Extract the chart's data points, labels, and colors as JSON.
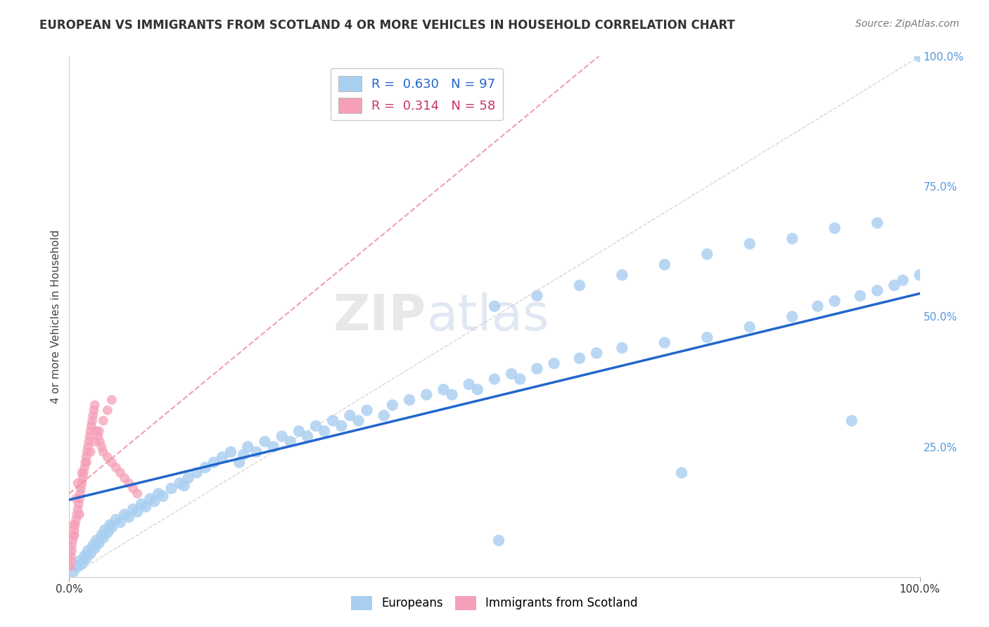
{
  "title": "EUROPEAN VS IMMIGRANTS FROM SCOTLAND 4 OR MORE VEHICLES IN HOUSEHOLD CORRELATION CHART",
  "source": "Source: ZipAtlas.com",
  "ylabel": "4 or more Vehicles in Household",
  "watermark_line1": "ZIP",
  "watermark_line2": "atlas",
  "blue_R": 0.63,
  "blue_N": 97,
  "pink_R": 0.314,
  "pink_N": 58,
  "blue_color": "#a8cef0",
  "pink_color": "#f5a0b8",
  "blue_line_color": "#2266cc",
  "pink_line_color": "#ee8899",
  "identity_line_color": "#cccccc",
  "background_color": "#ffffff",
  "legend_text_blue": "R =  0.630   N = 97",
  "legend_text_pink": "R =  0.314   N = 58",
  "legend_color_blue": "#2266cc",
  "legend_color_pink": "#cc3366",
  "blue_scatter_x": [
    0.5,
    1.0,
    1.2,
    1.5,
    1.8,
    2.0,
    2.2,
    2.5,
    2.8,
    3.0,
    3.2,
    3.5,
    3.8,
    4.0,
    4.2,
    4.5,
    4.8,
    5.0,
    5.5,
    6.0,
    6.5,
    7.0,
    7.5,
    8.0,
    8.5,
    9.0,
    9.5,
    10.0,
    10.5,
    11.0,
    12.0,
    13.0,
    13.5,
    14.0,
    15.0,
    16.0,
    17.0,
    18.0,
    19.0,
    20.0,
    20.5,
    21.0,
    22.0,
    23.0,
    24.0,
    25.0,
    26.0,
    27.0,
    28.0,
    29.0,
    30.0,
    31.0,
    32.0,
    33.0,
    34.0,
    35.0,
    37.0,
    38.0,
    40.0,
    42.0,
    44.0,
    45.0,
    47.0,
    48.0,
    50.0,
    50.5,
    52.0,
    53.0,
    55.0,
    57.0,
    60.0,
    62.0,
    65.0,
    70.0,
    72.0,
    75.0,
    80.0,
    85.0,
    88.0,
    90.0,
    92.0,
    93.0,
    95.0,
    97.0,
    98.0,
    100.0,
    50.0,
    55.0,
    60.0,
    65.0,
    70.0,
    75.0,
    80.0,
    85.0,
    90.0,
    95.0,
    100.0
  ],
  "blue_scatter_y": [
    1.0,
    2.0,
    3.0,
    2.5,
    4.0,
    3.5,
    5.0,
    4.5,
    6.0,
    5.5,
    7.0,
    6.5,
    8.0,
    7.5,
    9.0,
    8.5,
    10.0,
    9.5,
    11.0,
    10.5,
    12.0,
    11.5,
    13.0,
    12.5,
    14.0,
    13.5,
    15.0,
    14.5,
    16.0,
    15.5,
    17.0,
    18.0,
    17.5,
    19.0,
    20.0,
    21.0,
    22.0,
    23.0,
    24.0,
    22.0,
    23.5,
    25.0,
    24.0,
    26.0,
    25.0,
    27.0,
    26.0,
    28.0,
    27.0,
    29.0,
    28.0,
    30.0,
    29.0,
    31.0,
    30.0,
    32.0,
    31.0,
    33.0,
    34.0,
    35.0,
    36.0,
    35.0,
    37.0,
    36.0,
    38.0,
    7.0,
    39.0,
    38.0,
    40.0,
    41.0,
    42.0,
    43.0,
    44.0,
    45.0,
    20.0,
    46.0,
    48.0,
    50.0,
    52.0,
    53.0,
    30.0,
    54.0,
    55.0,
    56.0,
    57.0,
    58.0,
    52.0,
    54.0,
    56.0,
    58.0,
    60.0,
    62.0,
    64.0,
    65.0,
    67.0,
    68.0,
    100.0
  ],
  "pink_scatter_x": [
    0.1,
    0.2,
    0.3,
    0.4,
    0.5,
    0.6,
    0.7,
    0.8,
    0.9,
    1.0,
    1.1,
    1.2,
    1.3,
    1.4,
    1.5,
    1.6,
    1.7,
    1.8,
    1.9,
    2.0,
    2.1,
    2.2,
    2.3,
    2.4,
    2.5,
    2.6,
    2.7,
    2.8,
    2.9,
    3.0,
    3.2,
    3.4,
    3.6,
    3.8,
    4.0,
    4.5,
    5.0,
    5.5,
    6.0,
    6.5,
    7.0,
    7.5,
    8.0,
    0.3,
    0.5,
    0.8,
    1.0,
    1.5,
    2.0,
    2.5,
    3.0,
    3.5,
    4.0,
    4.5,
    5.0,
    0.2,
    0.6,
    1.2
  ],
  "pink_scatter_y": [
    2.0,
    4.0,
    6.0,
    7.0,
    8.0,
    9.0,
    10.0,
    11.0,
    12.0,
    13.0,
    14.0,
    15.0,
    16.0,
    17.0,
    18.0,
    19.0,
    20.0,
    21.0,
    22.0,
    23.0,
    24.0,
    25.0,
    26.0,
    27.0,
    28.0,
    29.0,
    30.0,
    31.0,
    32.0,
    33.0,
    28.0,
    27.0,
    26.0,
    25.0,
    24.0,
    23.0,
    22.0,
    21.0,
    20.0,
    19.0,
    18.0,
    17.0,
    16.0,
    5.0,
    10.0,
    15.0,
    18.0,
    20.0,
    22.0,
    24.0,
    26.0,
    28.0,
    30.0,
    32.0,
    34.0,
    3.0,
    8.0,
    12.0
  ]
}
